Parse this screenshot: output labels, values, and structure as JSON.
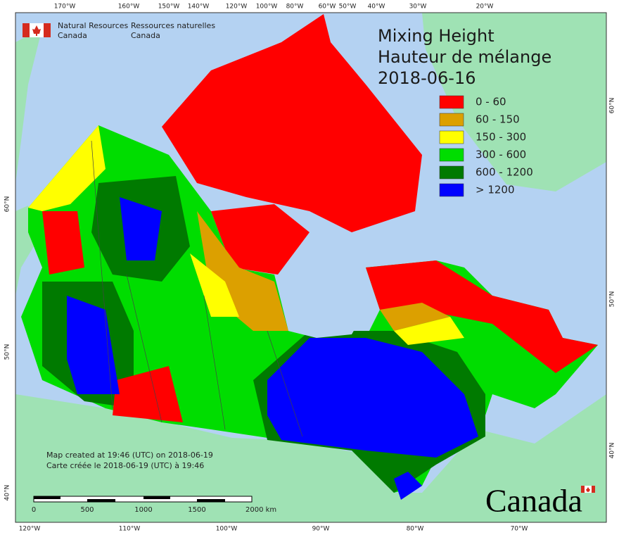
{
  "header": {
    "en": [
      "Natural Resources",
      "Canada"
    ],
    "fr": [
      "Ressources naturelles",
      "Canada"
    ]
  },
  "title": [
    "Mixing Height",
    "Hauteur de mélange",
    "2018-06-16"
  ],
  "legend": [
    {
      "label": "0 - 60",
      "color": "#ff0000"
    },
    {
      "label": "60 - 150",
      "color": "#dca000"
    },
    {
      "label": "150 - 300",
      "color": "#ffff00"
    },
    {
      "label": "300 - 600",
      "color": "#00dd00"
    },
    {
      "label": "600 - 1200",
      "color": "#007a00"
    },
    {
      "label": "> 1200",
      "color": "#0000ff"
    }
  ],
  "longitude_top": [
    "170°W",
    "160°W",
    "150°W",
    "140°W",
    "120°W",
    "100°W",
    "80°W",
    "60°W",
    "50°W",
    "40°W",
    "30°W",
    "20°W"
  ],
  "longitude_bottom": [
    "120°W",
    "110°W",
    "100°W",
    "90°W",
    "80°W",
    "70°W"
  ],
  "latitude_left": [
    "60°N",
    "50°N",
    "40°N"
  ],
  "latitude_right": [
    "60°N",
    "50°N",
    "40°N"
  ],
  "notes": [
    "Map created at 19:46 (UTC) on 2018-06-19",
    "Carte créée le 2018-06-19 (UTC) à 19:46"
  ],
  "scale_bar": [
    "0",
    "500",
    "1000",
    "1500",
    "2000 km"
  ],
  "wordmark": "Canada"
}
